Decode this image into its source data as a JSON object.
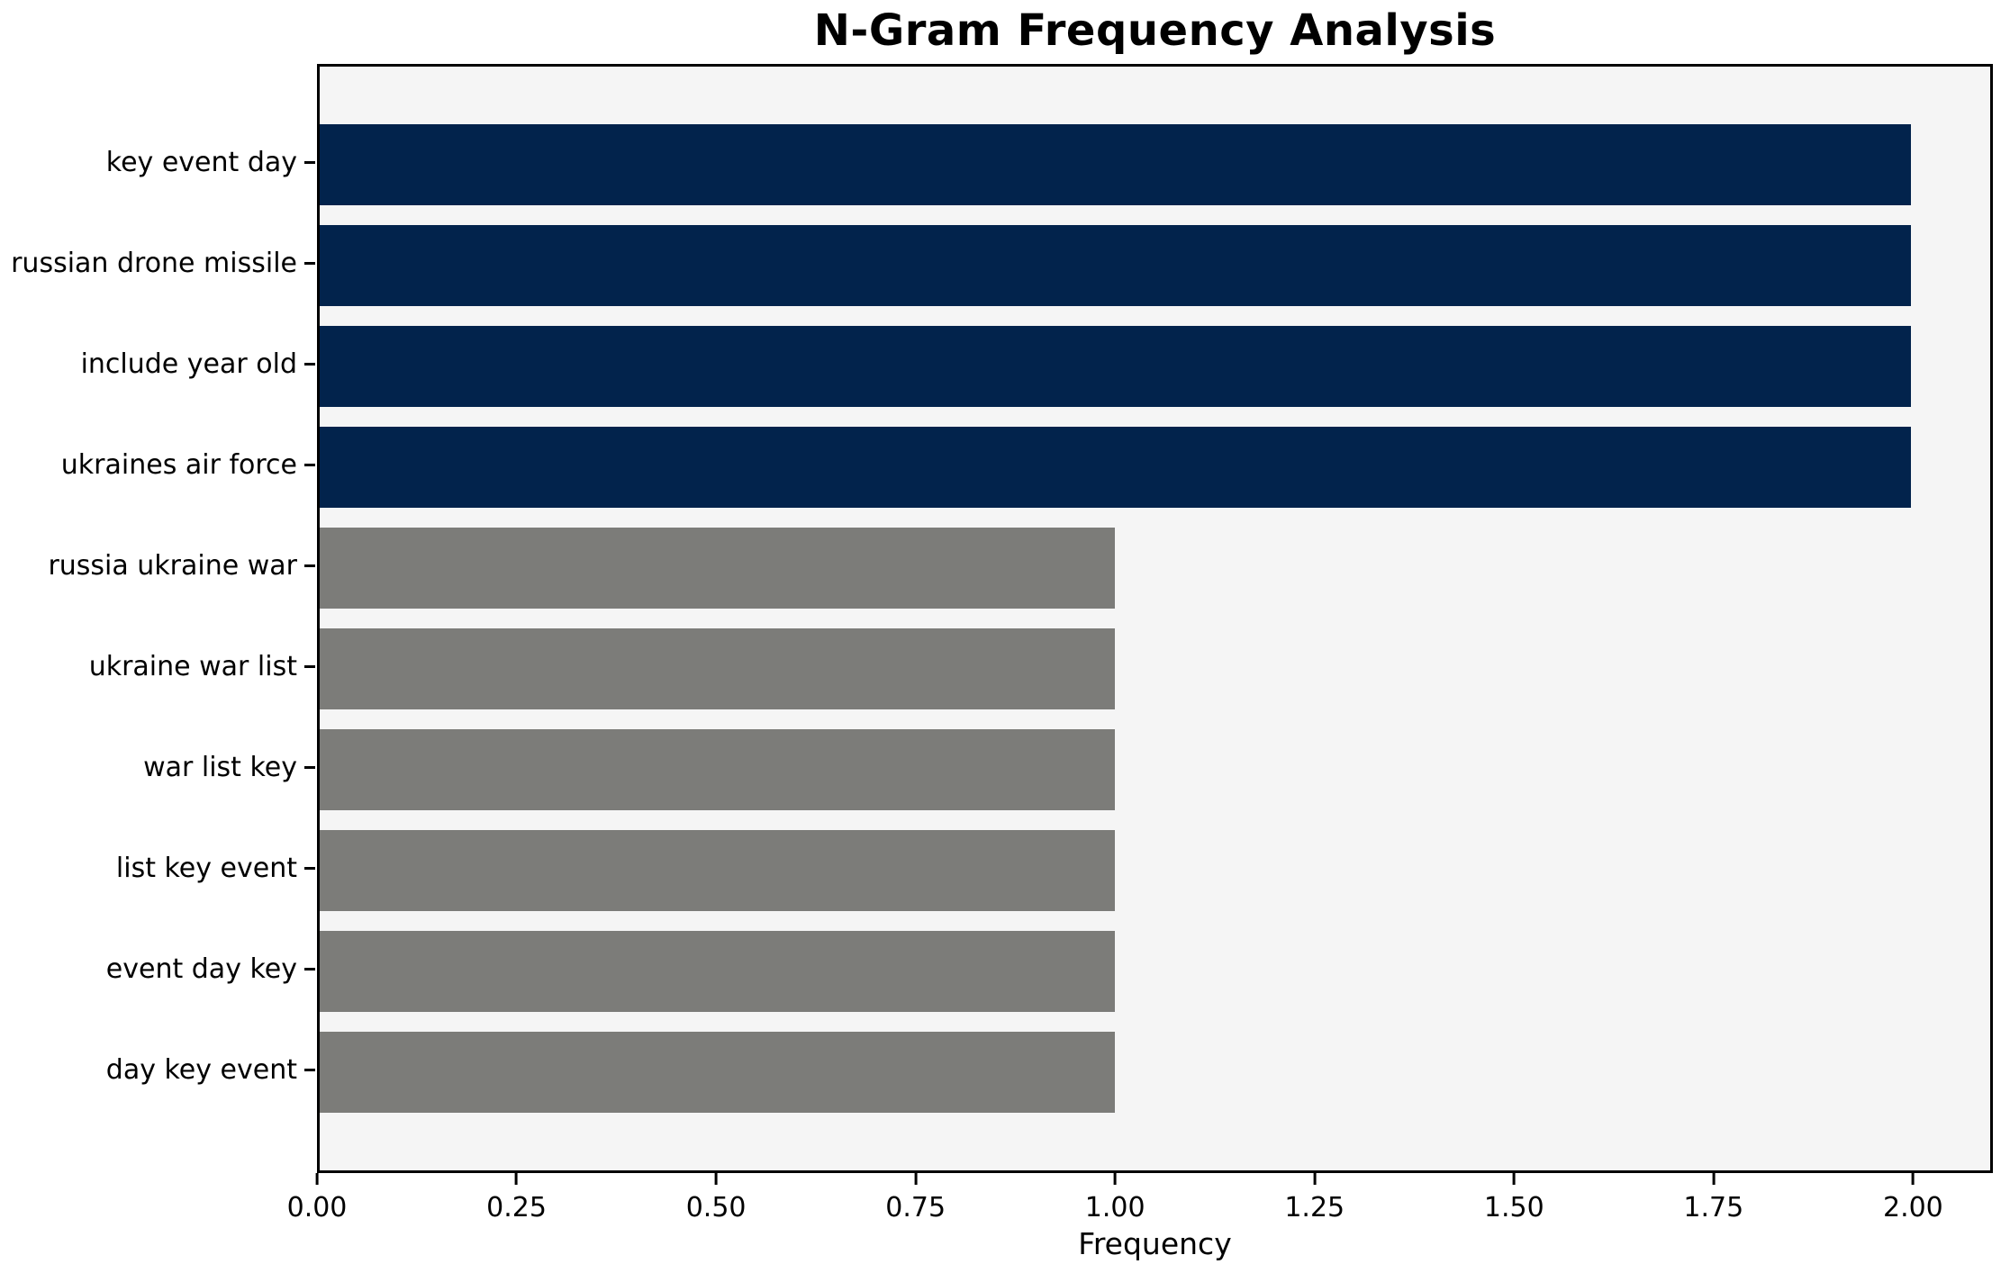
{
  "chart_data": {
    "type": "bar",
    "orientation": "horizontal",
    "title": "N-Gram Frequency Analysis",
    "xlabel": "Frequency",
    "ylabel": "",
    "categories": [
      "key event day",
      "russian drone missile",
      "include year old",
      "ukraines air force",
      "russia ukraine war",
      "ukraine war list",
      "war list key",
      "list key event",
      "event day key",
      "day key event"
    ],
    "values": [
      2,
      2,
      2,
      2,
      1,
      1,
      1,
      1,
      1,
      1
    ],
    "bar_colors": [
      "#02234C",
      "#02234C",
      "#02234C",
      "#02234C",
      "#7C7C79",
      "#7C7C79",
      "#7C7C79",
      "#7C7C79",
      "#7C7C79",
      "#7C7C79"
    ],
    "xlim": [
      0,
      2.1
    ],
    "xticks": [
      {
        "value": 0.0,
        "label": "0.00"
      },
      {
        "value": 0.25,
        "label": "0.25"
      },
      {
        "value": 0.5,
        "label": "0.50"
      },
      {
        "value": 0.75,
        "label": "0.75"
      },
      {
        "value": 1.0,
        "label": "1.00"
      },
      {
        "value": 1.25,
        "label": "1.25"
      },
      {
        "value": 1.5,
        "label": "1.50"
      },
      {
        "value": 1.75,
        "label": "1.75"
      },
      {
        "value": 2.0,
        "label": "2.00"
      }
    ],
    "grid": false,
    "legend": null,
    "colors": {
      "high_freq_bar": "#02234C",
      "low_freq_bar": "#7C7C79",
      "plot_background": "#F5F5F5",
      "figure_background": "#FFFFFF",
      "spine": "#000000"
    }
  }
}
